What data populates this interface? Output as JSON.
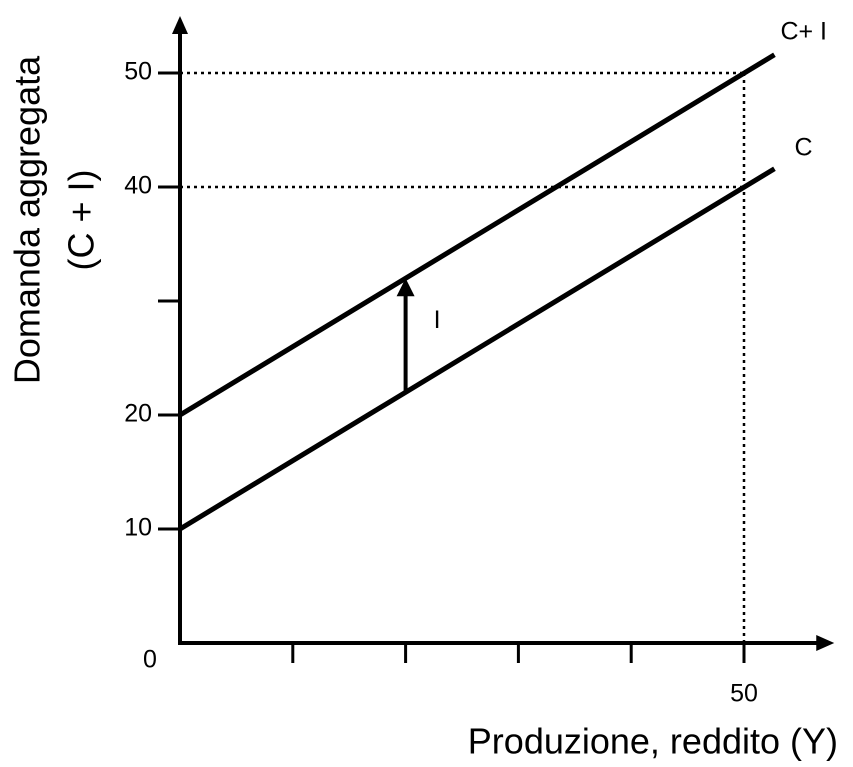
{
  "chart_data": {
    "type": "line",
    "y_label_lines": [
      "Domanda aggregata",
      "(C + I)"
    ],
    "x_label": "Produzione, reddito (Y)",
    "xlim": [
      0,
      58
    ],
    "ylim": [
      0,
      55
    ],
    "xticks": [
      10,
      20,
      30,
      40,
      50
    ],
    "xtick_labels": [
      50
    ],
    "yticks": [
      10,
      20,
      30,
      40,
      50
    ],
    "ytick_labels": [
      10,
      20,
      40,
      50
    ],
    "origin_label": 0,
    "color": "#000000",
    "series": [
      {
        "name": "C+ I",
        "x": [
          0,
          52.7
        ],
        "values": [
          20,
          51.6
        ]
      },
      {
        "name": "C",
        "x": [
          0,
          52.7
        ],
        "values": [
          10,
          41.6
        ]
      }
    ],
    "arrow": {
      "label": "I",
      "x": 20,
      "from": 22,
      "to": 32
    },
    "reference_y": [
      50,
      40
    ],
    "reference_x": [
      50
    ]
  }
}
